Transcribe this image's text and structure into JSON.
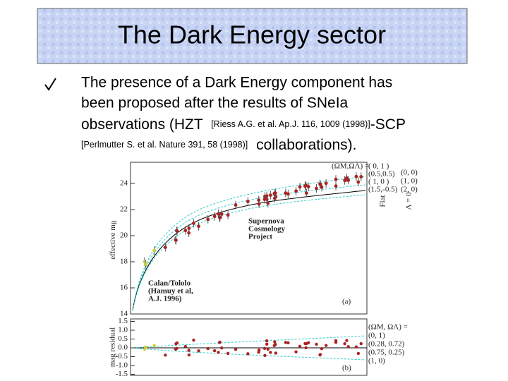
{
  "title": "The Dark Energy sector",
  "paragraph": [
    "The presence of a Dark Energy component has",
    "been proposed after the results of SNeIa",
    "observations (HZT",
    "[Riess A.G. et al. Ap.J. 116, 1009 (1998)]",
    "-SCP",
    "[Perlmutter S. et al. Nature 391, 58 (1998)]",
    "collaborations)."
  ],
  "figure": {
    "y_label": "effective m",
    "y_label_sub": "B",
    "yticks": [
      14,
      16,
      18,
      20,
      22,
      24
    ],
    "residual_label": "mag residual",
    "residual_ticks": [
      {
        "value": 1.5,
        "label": "1.5"
      },
      {
        "value": 1,
        "label": "1.0"
      },
      {
        "value": 0.5,
        "label": "0.5"
      },
      {
        "value": 0,
        "label": "0.0"
      },
      {
        "value": -0.5,
        "label": "-0.5"
      },
      {
        "value": -1,
        "label": "-1.0"
      },
      {
        "value": -1.5,
        "label": "-1.5"
      }
    ],
    "scp": [
      "Supernova",
      "Cosmology",
      "Project"
    ],
    "calan": [
      "Calan/Tololo",
      "(Hamuy et al,",
      "A.J. 1996)"
    ],
    "panel_a": "(a)",
    "panel_b": "(b)",
    "legend_head": "(ΩM,ΩΛ) =",
    "legend_flat": [
      "( 0, 1 )",
      "(0.5,0.5)",
      "( 1, 0 )",
      "(1.5,-0.5)"
    ],
    "legend_open": [
      "(0, 0)",
      "(1, 0)",
      "(2, 0)"
    ],
    "flat": "Flat",
    "lambda0": "Λ = 0",
    "legend_b": [
      "(ΩM, ΩΛ) =",
      "(0,    1)",
      "(0.28,  0.72)",
      "(0.75,  0.25)",
      "(1,    0)"
    ]
  }
}
